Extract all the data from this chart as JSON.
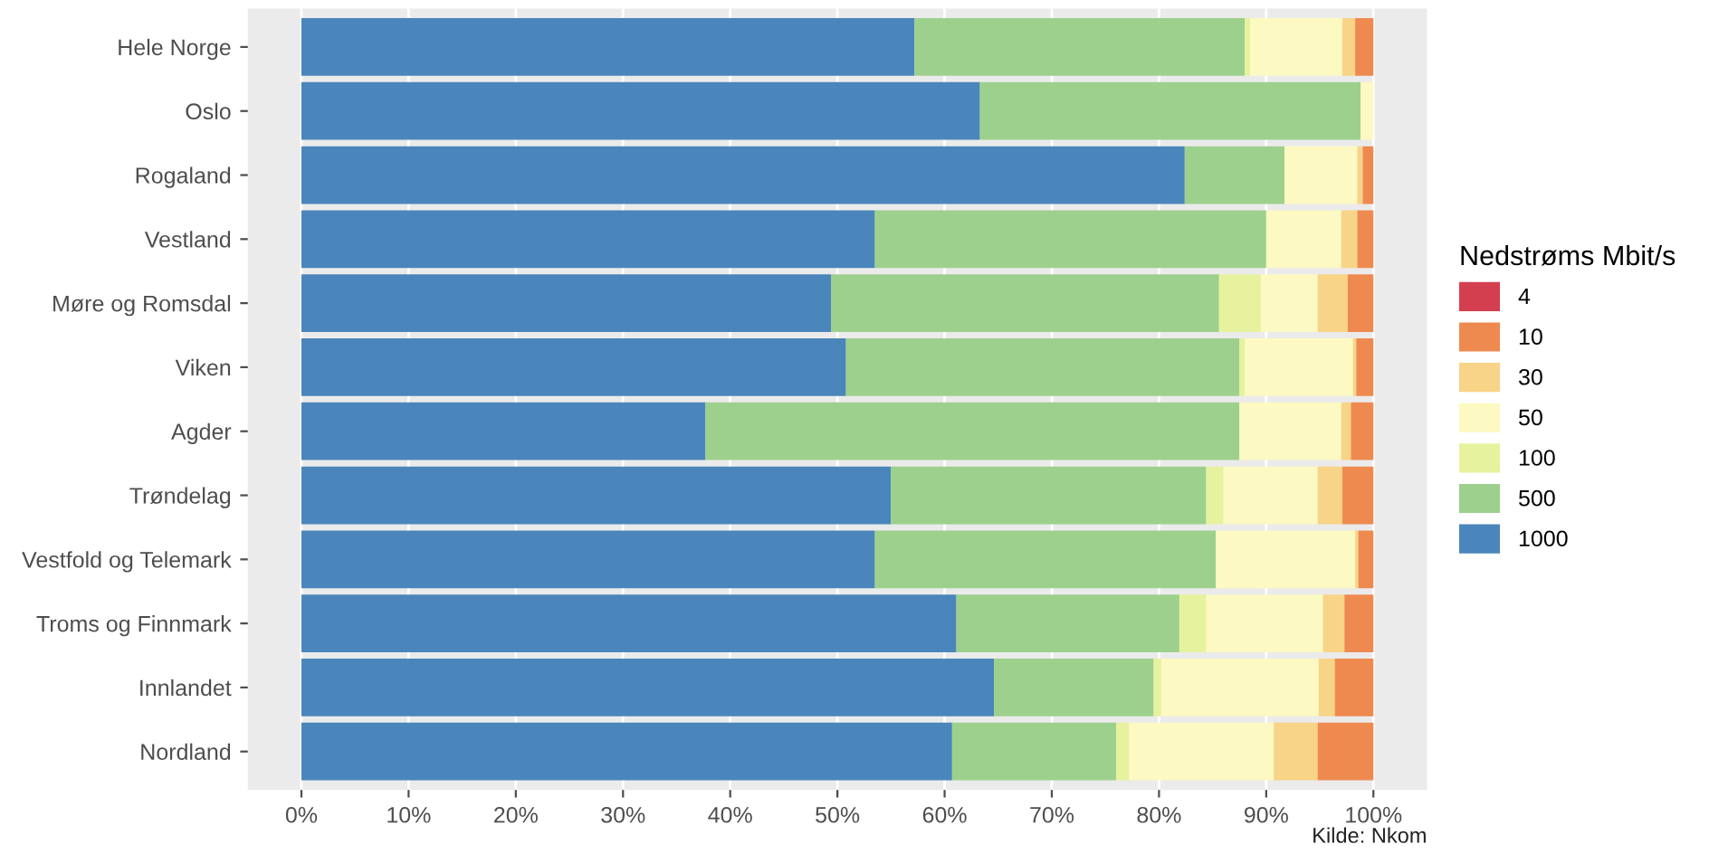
{
  "chart_data": {
    "type": "bar",
    "orientation": "horizontal",
    "stacked": true,
    "categories": [
      "Hele Norge",
      "Oslo",
      "Rogaland",
      "Vestland",
      "Møre og Romsdal",
      "Viken",
      "Agder",
      "Trøndelag",
      "Vestfold og Telemark",
      "Troms og Finnmark",
      "Innlandet",
      "Nordland"
    ],
    "series": [
      {
        "name": "1000",
        "color": "#4a86bb",
        "values": [
          57.2,
          63.3,
          82.4,
          53.5,
          49.4,
          50.8,
          37.7,
          55.0,
          53.5,
          61.1,
          64.6,
          60.7
        ]
      },
      {
        "name": "500",
        "color": "#9dd08d",
        "values": [
          30.8,
          35.5,
          9.3,
          36.5,
          36.2,
          36.7,
          49.8,
          29.4,
          31.8,
          20.8,
          14.9,
          15.3
        ]
      },
      {
        "name": "100",
        "color": "#e6f29d",
        "values": [
          0.5,
          0,
          0,
          0,
          3.9,
          0.5,
          0,
          1.6,
          0,
          2.5,
          0.7,
          1.2
        ]
      },
      {
        "name": "50",
        "color": "#fdf9c2",
        "values": [
          8.6,
          1.2,
          6.8,
          7.0,
          5.3,
          10.1,
          9.5,
          8.8,
          13.0,
          10.9,
          14.7,
          13.5
        ]
      },
      {
        "name": "30",
        "color": "#f8d488",
        "values": [
          1.2,
          0,
          0.5,
          1.5,
          2.8,
          0.3,
          0.9,
          2.3,
          0.3,
          2.0,
          1.5,
          4.1
        ]
      },
      {
        "name": "10",
        "color": "#ee8a50",
        "values": [
          1.7,
          0,
          1.0,
          1.5,
          2.4,
          1.6,
          2.1,
          2.9,
          1.4,
          2.7,
          3.6,
          5.2
        ]
      },
      {
        "name": "4",
        "color": "#d33f4f",
        "values": [
          0,
          0,
          0,
          0,
          0,
          0,
          0,
          0,
          0,
          0,
          0,
          0
        ]
      }
    ],
    "xlim": [
      -5,
      105
    ],
    "xticks": [
      {
        "value": 0,
        "label": "0%"
      },
      {
        "value": 10,
        "label": "10%"
      },
      {
        "value": 20,
        "label": "20%"
      },
      {
        "value": 30,
        "label": "30%"
      },
      {
        "value": 40,
        "label": "40%"
      },
      {
        "value": 50,
        "label": "50%"
      },
      {
        "value": 60,
        "label": "60%"
      },
      {
        "value": 70,
        "label": "70%"
      },
      {
        "value": 80,
        "label": "80%"
      },
      {
        "value": 90,
        "label": "90%"
      },
      {
        "value": 100,
        "label": "100%"
      }
    ],
    "legend_title": "Nedstrøms Mbit/s",
    "legend": "right",
    "grid": "x",
    "annotations": [
      "Kilde: Nkom"
    ]
  }
}
